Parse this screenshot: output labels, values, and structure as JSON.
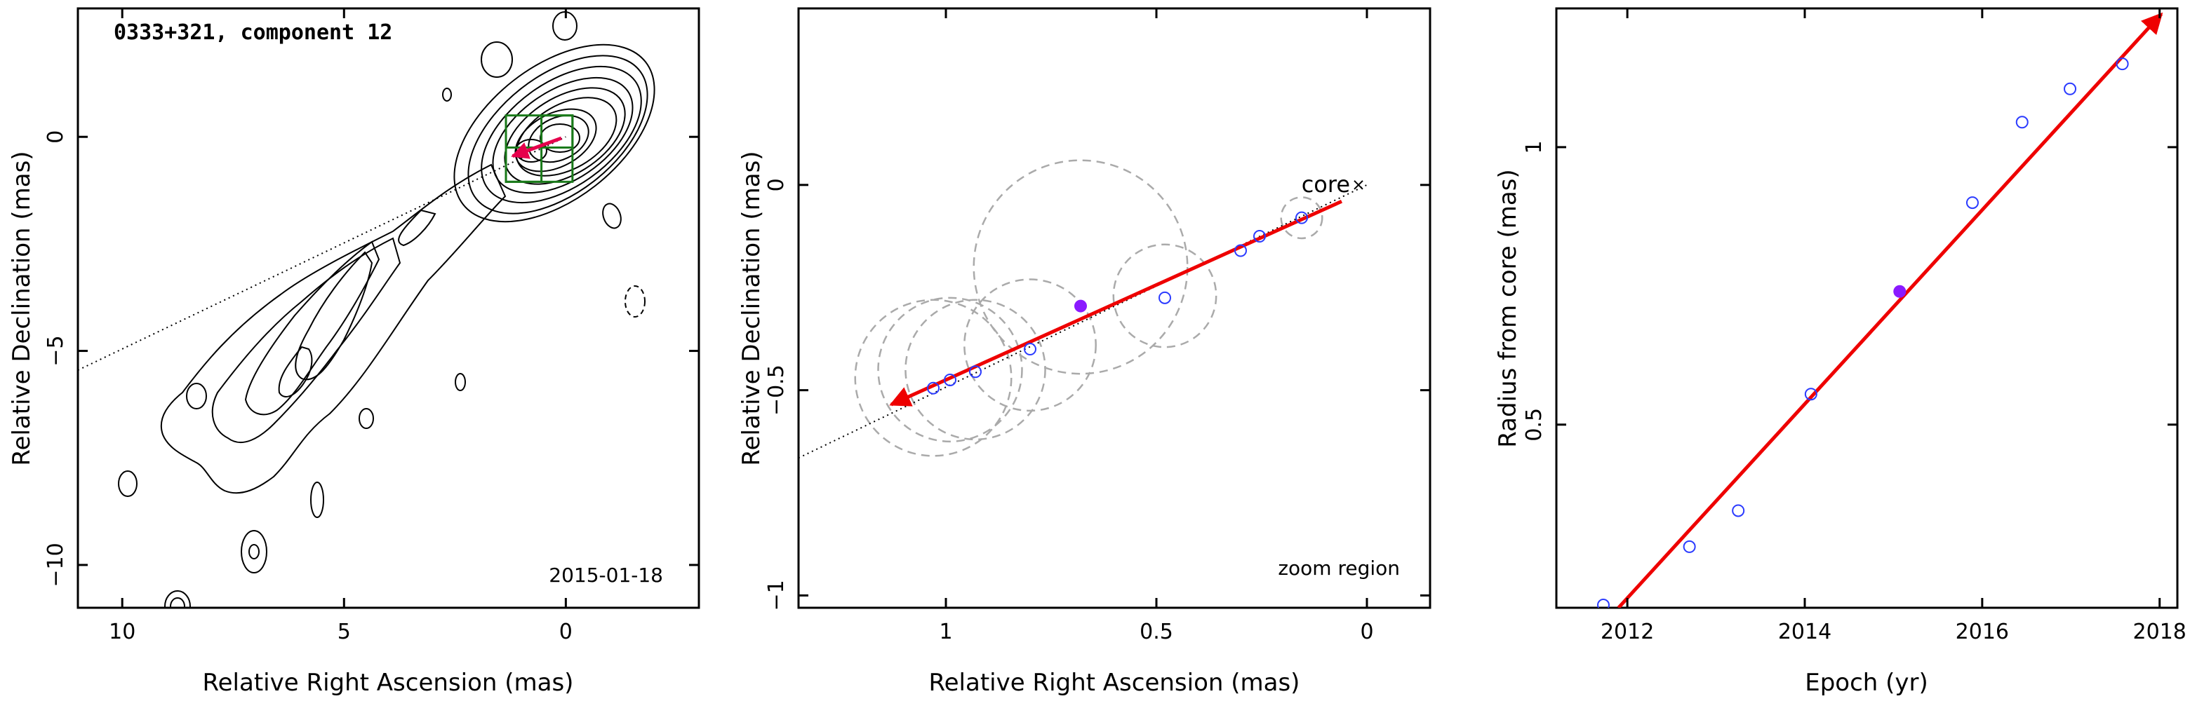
{
  "chart_data": [
    {
      "type": "contour-image",
      "title": "0333+321, component 12",
      "epoch_label": "2015-01-18",
      "xlabel": "Relative Right Ascension (mas)",
      "ylabel": "Relative Declination (mas)",
      "xlim": [
        11,
        -3
      ],
      "ylim": [
        -11,
        3
      ],
      "xticks": [
        10,
        5,
        0
      ],
      "yticks": [
        0,
        -5,
        -10
      ],
      "xtick_labels": [
        "10",
        "5",
        "0"
      ],
      "ytick_labels": [
        "0",
        "−5",
        "−10"
      ],
      "colors": {
        "contour": "#000000",
        "box": "#1a7a1a",
        "arrow": "#e6004c"
      },
      "component_position": {
        "x": 0.85,
        "y": -0.25
      },
      "trajectory_line": {
        "x0": 11,
        "y0": -5.45,
        "x1": 0,
        "y1": 0
      },
      "boxes": [
        {
          "x0": 1.35,
          "x1": -0.15,
          "y0": -1.05,
          "y1": 0.5
        },
        {
          "x0": 1.35,
          "x1": 0.55,
          "y0": -1.05,
          "y1": -0.25
        },
        {
          "x0": 0.55,
          "x1": -0.15,
          "y0": -0.25,
          "y1": 0.5
        }
      ]
    },
    {
      "type": "scatter",
      "xlabel": "Relative Right Ascension (mas)",
      "ylabel": "Relative Declination (mas)",
      "xlim": [
        1.35,
        -0.15
      ],
      "ylim": [
        -1.03,
        0.43
      ],
      "xticks": [
        1,
        0.5,
        0
      ],
      "yticks": [
        0,
        -0.5,
        -1
      ],
      "xtick_labels": [
        "1",
        "0.5",
        "0"
      ],
      "ytick_labels": [
        "0",
        "−0.5",
        "−1"
      ],
      "core_label": "core",
      "zoom_label": "zoom region",
      "colors": {
        "points": "#2b3bff",
        "highlight": "#8a1aff",
        "arrow": "#ee0000",
        "circles": "#aaaaaa"
      },
      "points": [
        {
          "x": 1.03,
          "y": -0.495
        },
        {
          "x": 0.99,
          "y": -0.475
        },
        {
          "x": 0.93,
          "y": -0.455
        },
        {
          "x": 0.8,
          "y": -0.4
        },
        {
          "x": 0.48,
          "y": -0.275
        },
        {
          "x": 0.3,
          "y": -0.16
        },
        {
          "x": 0.255,
          "y": -0.125
        },
        {
          "x": 0.155,
          "y": -0.08
        }
      ],
      "circles": [
        {
          "x": 1.03,
          "y": -0.47,
          "r": 0.19
        },
        {
          "x": 0.99,
          "y": -0.45,
          "r": 0.175
        },
        {
          "x": 0.93,
          "y": -0.45,
          "r": 0.17
        },
        {
          "x": 0.8,
          "y": -0.39,
          "r": 0.16
        },
        {
          "x": 0.68,
          "y": -0.2,
          "r": 0.26
        },
        {
          "x": 0.48,
          "y": -0.27,
          "r": 0.125
        },
        {
          "x": 0.155,
          "y": -0.08,
          "r": 0.05
        }
      ],
      "highlight": {
        "x": 0.68,
        "y": -0.295
      },
      "arrow": {
        "x0": 0.06,
        "y0": -0.04,
        "x1": 1.13,
        "y1": -0.535
      },
      "trajectory_line": {
        "x0": 1.35,
        "y0": -0.665,
        "x1": 0.0,
        "y1": 0.0
      },
      "core_marker": {
        "x": 0.0,
        "y": 0.0
      }
    },
    {
      "type": "scatter",
      "xlabel": "Epoch (yr)",
      "ylabel": "Radius from core (mas)",
      "xlim": [
        2011.2,
        2018.2
      ],
      "ylim": [
        0.17,
        1.25
      ],
      "xticks": [
        2012,
        2014,
        2016,
        2018
      ],
      "yticks": [
        0.5,
        1
      ],
      "xtick_labels": [
        "2012",
        "2014",
        "2016",
        "2018"
      ],
      "ytick_labels": [
        "0.5",
        "1"
      ],
      "colors": {
        "points": "#2b3bff",
        "highlight": "#8a1aff",
        "fit": "#ee0000"
      },
      "x": [
        2011.73,
        2012.7,
        2013.25,
        2014.07,
        2015.89,
        2016.45,
        2016.99,
        2017.58
      ],
      "y": [
        0.175,
        0.28,
        0.345,
        0.555,
        0.9,
        1.045,
        1.105,
        1.15
      ],
      "highlight": {
        "x": 2015.07,
        "y": 0.74
      },
      "fit": {
        "x0": 2011.9,
        "y0": 0.17,
        "x1": 2018.02,
        "y1": 1.24
      }
    }
  ]
}
